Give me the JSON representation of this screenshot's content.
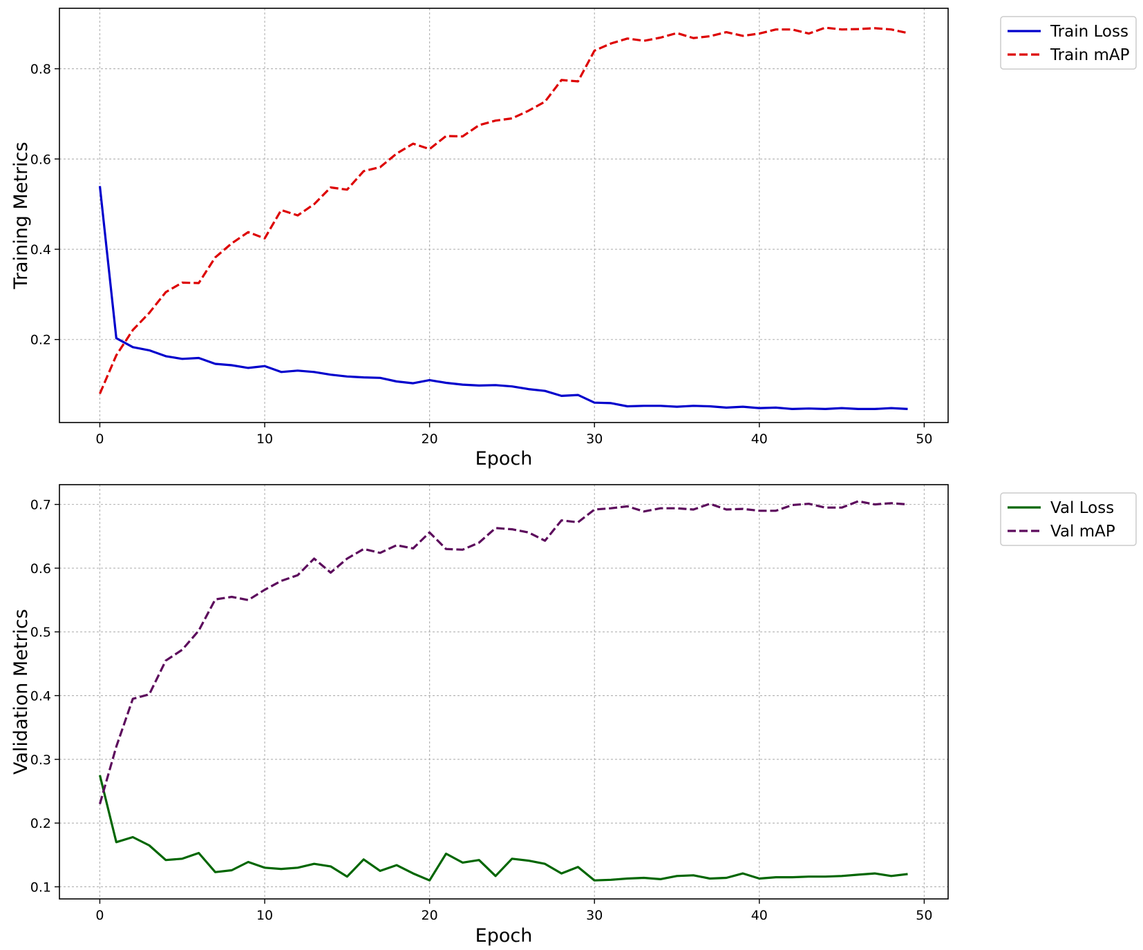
{
  "chart_data": [
    {
      "type": "line",
      "xlabel": "Epoch",
      "ylabel": "Training Metrics",
      "xlim": [
        -2.45,
        51.45
      ],
      "ylim": [
        0.016,
        0.934
      ],
      "xticks": [
        0,
        10,
        20,
        30,
        40,
        50
      ],
      "yticks": [
        0.2,
        0.4,
        0.6,
        0.8
      ],
      "grid": true,
      "legend_position": "outside-upper-right",
      "x": [
        0,
        1,
        2,
        3,
        4,
        5,
        6,
        7,
        8,
        9,
        10,
        11,
        12,
        13,
        14,
        15,
        16,
        17,
        18,
        19,
        20,
        21,
        22,
        23,
        24,
        25,
        26,
        27,
        28,
        29,
        30,
        31,
        32,
        33,
        34,
        35,
        36,
        37,
        38,
        39,
        40,
        41,
        42,
        43,
        44,
        45,
        46,
        47,
        48,
        49
      ],
      "series": [
        {
          "name": "Train Loss",
          "color": "#0000cc",
          "style": "solid",
          "values": [
            0.54,
            0.203,
            0.183,
            0.176,
            0.163,
            0.157,
            0.159,
            0.146,
            0.143,
            0.137,
            0.141,
            0.128,
            0.131,
            0.128,
            0.122,
            0.118,
            0.116,
            0.115,
            0.107,
            0.103,
            0.11,
            0.104,
            0.1,
            0.098,
            0.099,
            0.096,
            0.09,
            0.086,
            0.075,
            0.077,
            0.06,
            0.059,
            0.052,
            0.053,
            0.053,
            0.051,
            0.053,
            0.052,
            0.049,
            0.051,
            0.048,
            0.049,
            0.046,
            0.047,
            0.046,
            0.048,
            0.046,
            0.046,
            0.048,
            0.046
          ]
        },
        {
          "name": "Train mAP",
          "color": "#dd0000",
          "style": "dashed",
          "values": [
            0.08,
            0.165,
            0.221,
            0.259,
            0.305,
            0.326,
            0.325,
            0.382,
            0.413,
            0.438,
            0.424,
            0.487,
            0.475,
            0.5,
            0.537,
            0.532,
            0.573,
            0.582,
            0.612,
            0.634,
            0.622,
            0.651,
            0.65,
            0.675,
            0.685,
            0.69,
            0.707,
            0.727,
            0.775,
            0.772,
            0.84,
            0.856,
            0.867,
            0.862,
            0.869,
            0.879,
            0.868,
            0.872,
            0.881,
            0.873,
            0.878,
            0.887,
            0.887,
            0.878,
            0.891,
            0.887,
            0.888,
            0.89,
            0.887,
            0.879
          ]
        }
      ]
    },
    {
      "type": "line",
      "xlabel": "Epoch",
      "ylabel": "Validation Metrics",
      "xlim": [
        -2.45,
        51.45
      ],
      "ylim": [
        0.081,
        0.731
      ],
      "xticks": [
        0,
        10,
        20,
        30,
        40,
        50
      ],
      "yticks": [
        0.1,
        0.2,
        0.3,
        0.4,
        0.5,
        0.6,
        0.7
      ],
      "grid": true,
      "legend_position": "outside-upper-right",
      "x": [
        0,
        1,
        2,
        3,
        4,
        5,
        6,
        7,
        8,
        9,
        10,
        11,
        12,
        13,
        14,
        15,
        16,
        17,
        18,
        19,
        20,
        21,
        22,
        23,
        24,
        25,
        26,
        27,
        28,
        29,
        30,
        31,
        32,
        33,
        34,
        35,
        36,
        37,
        38,
        39,
        40,
        41,
        42,
        43,
        44,
        45,
        46,
        47,
        48,
        49
      ],
      "series": [
        {
          "name": "Val Loss",
          "color": "#006600",
          "style": "solid",
          "values": [
            0.275,
            0.17,
            0.178,
            0.165,
            0.142,
            0.144,
            0.153,
            0.123,
            0.126,
            0.139,
            0.13,
            0.128,
            0.13,
            0.136,
            0.132,
            0.116,
            0.143,
            0.125,
            0.134,
            0.121,
            0.11,
            0.152,
            0.138,
            0.142,
            0.117,
            0.144,
            0.141,
            0.136,
            0.121,
            0.131,
            0.11,
            0.111,
            0.113,
            0.114,
            0.112,
            0.117,
            0.118,
            0.113,
            0.114,
            0.121,
            0.113,
            0.115,
            0.115,
            0.116,
            0.116,
            0.117,
            0.119,
            0.121,
            0.117,
            0.12
          ]
        },
        {
          "name": "Val mAP",
          "color": "#5c0a5c",
          "style": "dashed",
          "values": [
            0.23,
            0.32,
            0.395,
            0.402,
            0.455,
            0.472,
            0.502,
            0.551,
            0.555,
            0.55,
            0.566,
            0.58,
            0.589,
            0.615,
            0.593,
            0.615,
            0.63,
            0.624,
            0.636,
            0.631,
            0.656,
            0.63,
            0.629,
            0.64,
            0.663,
            0.661,
            0.656,
            0.643,
            0.675,
            0.672,
            0.692,
            0.694,
            0.697,
            0.689,
            0.694,
            0.694,
            0.692,
            0.701,
            0.692,
            0.693,
            0.69,
            0.69,
            0.699,
            0.701,
            0.695,
            0.695,
            0.705,
            0.7,
            0.702,
            0.7
          ]
        }
      ]
    }
  ]
}
